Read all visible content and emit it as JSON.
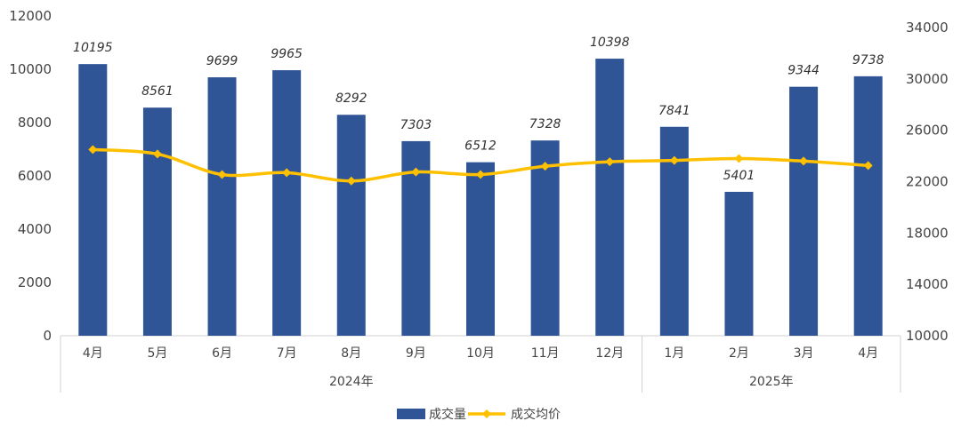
{
  "chart_data": {
    "type": "bar+line",
    "groups": [
      {
        "label": "2024年",
        "months": [
          "4月",
          "5月",
          "6月",
          "7月",
          "8月",
          "9月",
          "10月",
          "11月",
          "12月"
        ]
      },
      {
        "label": "2025年",
        "months": [
          "1月",
          "2月",
          "3月",
          "4月"
        ]
      }
    ],
    "categories": [
      "4月",
      "5月",
      "6月",
      "7月",
      "8月",
      "9月",
      "10月",
      "11月",
      "12月",
      "1月",
      "2月",
      "3月",
      "4月"
    ],
    "series": [
      {
        "name": "成交量",
        "type": "bar",
        "axis": "left",
        "color": "#2F5597",
        "values": [
          10195,
          8561,
          9699,
          9965,
          8292,
          7303,
          6512,
          7328,
          10398,
          7841,
          5401,
          9344,
          9738
        ]
      },
      {
        "name": "成交均价",
        "type": "line",
        "axis": "right",
        "color": "#FFC000",
        "values": [
          24500,
          24150,
          22550,
          22700,
          22050,
          22750,
          22550,
          23200,
          23550,
          23650,
          23800,
          23600,
          23250
        ]
      }
    ],
    "left_axis": {
      "min": 0,
      "max": 12000,
      "ticks": [
        "0",
        "2000",
        "4000",
        "6000",
        "8000",
        "10000",
        "12000"
      ]
    },
    "right_axis": {
      "min": 10000,
      "max": 34000,
      "ticks": [
        "10000",
        "14000",
        "18000",
        "22000",
        "26000",
        "30000",
        "34000"
      ]
    },
    "legend": {
      "position": "bottom",
      "items": [
        "成交量",
        "成交均价"
      ]
    }
  }
}
